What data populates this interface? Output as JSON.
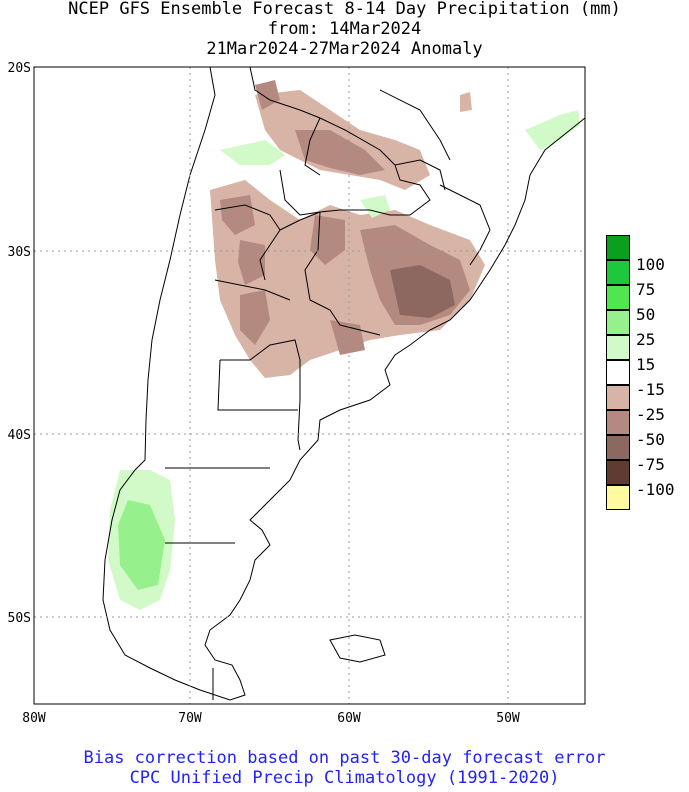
{
  "header": {
    "line1": "NCEP GFS Ensemble Forecast 8-14 Day Precipitation (mm)",
    "line2": "from: 14Mar2024",
    "line3": "21Mar2024-27Mar2024 Anomaly"
  },
  "axes": {
    "lat_labels": [
      "20S",
      "30S",
      "40S",
      "50S"
    ],
    "lon_labels": [
      "80W",
      "70W",
      "60W",
      "50W"
    ]
  },
  "legend": {
    "labels": [
      "100",
      "75",
      "50",
      "25",
      "15",
      "-15",
      "-25",
      "-50",
      "-75",
      "-100"
    ],
    "colors": [
      "#0aa01e",
      "#1ec83c",
      "#50e650",
      "#96f08c",
      "#d2fac8",
      "#ffffff",
      "#d8b4a6",
      "#b48a80",
      "#8c6860",
      "#603c30",
      "#fffaa0"
    ]
  },
  "footer": {
    "line1": "Bias correction based on past 30-day forecast error",
    "line2": "CPC Unified Precip Climatology (1991-2020)"
  }
}
